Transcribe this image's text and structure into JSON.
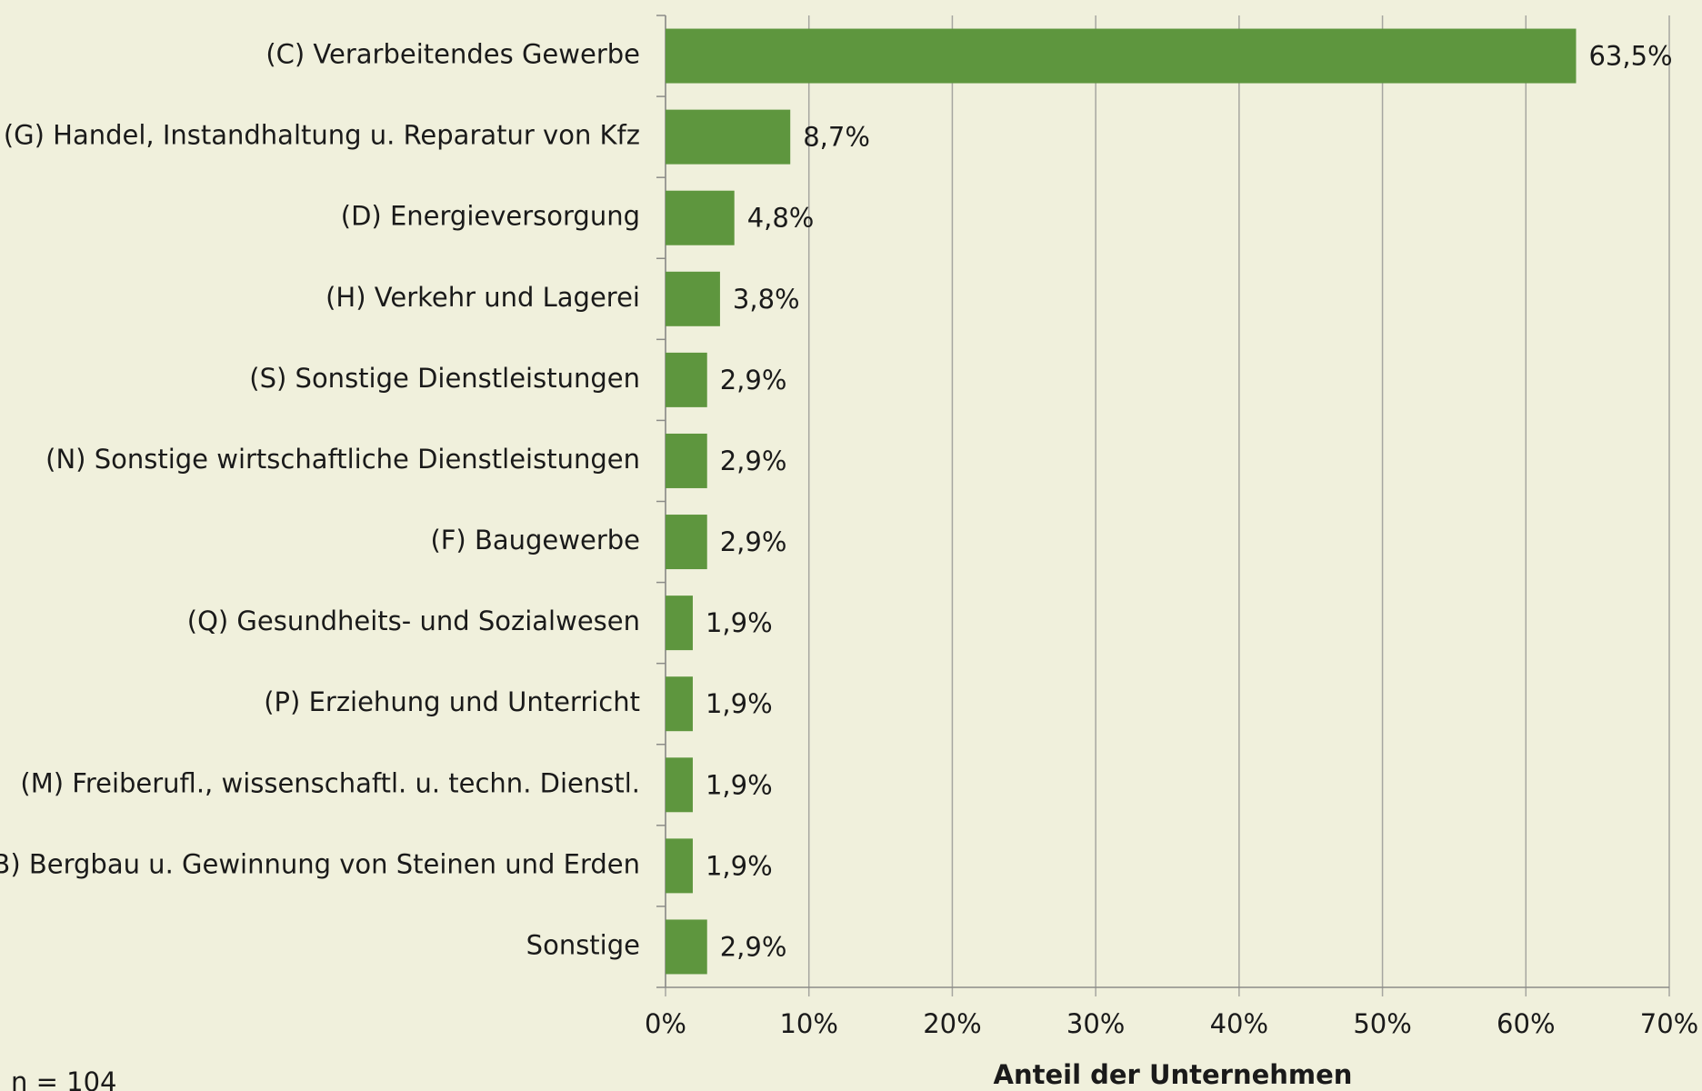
{
  "chart_data": {
    "type": "bar",
    "orientation": "horizontal",
    "categories": [
      "(C) Verarbeitendes Gewerbe",
      "(G) Handel, Instandhaltung u. Reparatur von Kfz",
      "(D) Energieversorgung",
      "(H) Verkehr und Lagerei",
      "(S) Sonstige Dienstleistungen",
      "(N) Sonstige wirtschaftliche Dienstleistungen",
      "(F) Baugewerbe",
      "(Q) Gesundheits- und Sozialwesen",
      "(P) Erziehung und Unterricht",
      "(M) Freiberufl., wissenschaftl. u. techn. Dienstl.",
      "(B) Bergbau u. Gewinnung von Steinen und Erden",
      "Sonstige"
    ],
    "values": [
      63.5,
      8.7,
      4.8,
      3.8,
      2.9,
      2.9,
      2.9,
      1.9,
      1.9,
      1.9,
      1.9,
      2.9
    ],
    "value_labels": [
      "63,5%",
      "8,7%",
      "4,8%",
      "3,8%",
      "2,9%",
      "2,9%",
      "2,9%",
      "1,9%",
      "1,9%",
      "1,9%",
      "1,9%",
      "2,9%"
    ],
    "color": "#5e963e",
    "xlim": [
      0,
      70
    ],
    "xticks": [
      {
        "value": 0,
        "label": "0%"
      },
      {
        "value": 10,
        "label": "10%"
      },
      {
        "value": 20,
        "label": "20%"
      },
      {
        "value": 30,
        "label": "30%"
      },
      {
        "value": 40,
        "label": "40%"
      },
      {
        "value": 50,
        "label": "50%"
      },
      {
        "value": 60,
        "label": "60%"
      },
      {
        "value": 70,
        "label": "70%"
      }
    ],
    "grid": true,
    "x_label": "Anteil der Unternehmen",
    "note": "n = 104"
  }
}
